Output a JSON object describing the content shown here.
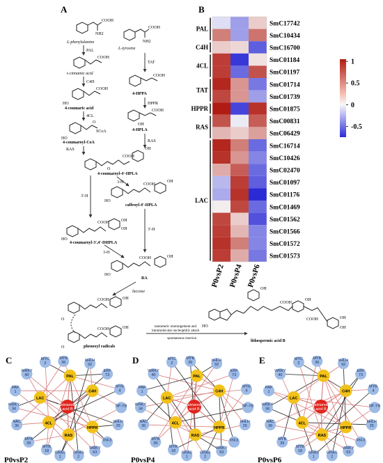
{
  "panels": {
    "a": "A",
    "b": "B",
    "c": "C",
    "d": "D",
    "e": "E"
  },
  "pathway": {
    "compounds": [
      {
        "id": "phe",
        "label": "L-phenylalanine"
      },
      {
        "id": "tyr",
        "label": "L-tyrosine"
      },
      {
        "id": "cin",
        "label": "t-cinnamic acid"
      },
      {
        "id": "cou",
        "label": "4-coumaric acid"
      },
      {
        "id": "coa",
        "label": "4-coumaroyl-CoA"
      },
      {
        "id": "hppa",
        "label": "4-HPPA"
      },
      {
        "id": "hpla",
        "label": "4-HPLA"
      },
      {
        "id": "c4hpla",
        "label": "4-coumaroyl-4'-HPLA"
      },
      {
        "id": "caf",
        "label": "caffeoyl-4'-HPLA"
      },
      {
        "id": "dhpla",
        "label": "4-coumaroyl-3',4'-DHPLA"
      },
      {
        "id": "ra",
        "label": "RA"
      },
      {
        "id": "rad",
        "label": "phenoxyl radicals"
      },
      {
        "id": "lab",
        "label": "lithospermic acid B"
      }
    ],
    "enzymes": {
      "pal": "PAL",
      "c4h": "C4H",
      "cl4": "4CL",
      "tat": "TAT",
      "hppr": "HPPR",
      "ras1": "RAS",
      "ras2": "RAS",
      "h3a": "3'-H",
      "h3b": "3-H",
      "h3c": "3'-H",
      "h3d": "3-H",
      "laccase": "laccase"
    },
    "reaction_text": [
      "tautomeric rearrangement and",
      "intramolecular nucleophilic attack",
      "spontaneous reaction"
    ],
    "atom_labels": {
      "cooh": "COOH",
      "nh2": "NH2",
      "oh": "OH",
      "o": "O",
      "h": "H",
      "scoa": "SCoA",
      "ho": "HO"
    }
  },
  "heatmap": {
    "columns": [
      "P0vsP2",
      "P0vsP4",
      "P0vsP6"
    ],
    "groups": [
      {
        "name": "PAL",
        "rows": [
          0,
          1
        ]
      },
      {
        "name": "C4H",
        "rows": [
          2,
          2
        ]
      },
      {
        "name": "4CL",
        "rows": [
          3,
          4
        ]
      },
      {
        "name": "TAT",
        "rows": [
          5,
          6
        ]
      },
      {
        "name": "HPPR",
        "rows": [
          7,
          7
        ]
      },
      {
        "name": "RAS",
        "rows": [
          8,
          9
        ]
      },
      {
        "name": "LAC",
        "rows": [
          10,
          19
        ]
      }
    ],
    "genes": [
      "SmC17742",
      "SmC10434",
      "SmC16700",
      "SmC01184",
      "SmC01197",
      "SmC01714",
      "SmC01739",
      "SmC01875",
      "SmC00831",
      "SmC06429",
      "SmC16714",
      "SmC10426",
      "SmC02470",
      "SmC01097",
      "SmC01176",
      "SmC01469",
      "SmC01562",
      "SmC01566",
      "SmC01572",
      "SmC01573"
    ],
    "values": [
      [
        -0.1,
        -0.35,
        0.2
      ],
      [
        0.55,
        -0.35,
        0.6
      ],
      [
        0.2,
        0.15,
        -0.6
      ],
      [
        0.85,
        -0.75,
        0.1
      ],
      [
        0.85,
        -0.55,
        0.75
      ],
      [
        0.95,
        0.45,
        -0.5
      ],
      [
        0.8,
        0.45,
        -0.35
      ],
      [
        1.0,
        -0.7,
        0.9
      ],
      [
        0.75,
        -0.05,
        0.7
      ],
      [
        0.3,
        0.2,
        0.4
      ],
      [
        0.95,
        0.55,
        -0.55
      ],
      [
        0.9,
        0.45,
        -0.45
      ],
      [
        0.35,
        0.7,
        -0.55
      ],
      [
        -0.25,
        0.85,
        -0.6
      ],
      [
        -0.3,
        0.9,
        -0.8
      ],
      [
        0.05,
        0.8,
        -0.55
      ],
      [
        0.8,
        0.2,
        -0.65
      ],
      [
        0.85,
        0.3,
        -0.45
      ],
      [
        0.9,
        0.55,
        -0.45
      ],
      [
        0.85,
        0.35,
        -0.5
      ]
    ],
    "colorbar": {
      "ticks": [
        "1",
        "0.5",
        "0",
        "-0.5"
      ],
      "tick_values": [
        1,
        0.5,
        0,
        -0.5
      ],
      "range": [
        -0.75,
        1.05
      ],
      "colors": {
        "low": "#2b2bd6",
        "mid": "#f8f8f8",
        "high": "#b01c12"
      }
    }
  },
  "networks": [
    {
      "panel": "C",
      "label": "P0vsP2",
      "seed": 0
    },
    {
      "panel": "D",
      "label": "P0vsP4",
      "seed": 1
    },
    {
      "panel": "E",
      "label": "P0vsP6",
      "seed": 2
    }
  ],
  "network_nodes": {
    "center": "Salvianolic acid B",
    "enzymes": [
      "PAL",
      "C4H",
      "LAC",
      "4CL",
      "RAS",
      "HPPR"
    ],
    "tfs": [
      "MYC 2",
      "MYB 36",
      "bHLH 92",
      "ERF 73",
      "WRKY 40",
      "PAP 1",
      "MYB 4",
      "WRKY 34",
      "NF-YB",
      "NAC 36",
      "bHLH 25",
      "MYB 39",
      "MYB 18",
      "PIF3",
      "GRAS 1",
      "GRAS 2",
      "WRKY 63"
    ]
  },
  "colors": {
    "enzyme_node": "#f2c21a",
    "tf_node": "#9dbbe6",
    "center_node": "#e0241c",
    "edge_pos": "#d77a7a",
    "edge_neg": "#222222"
  }
}
